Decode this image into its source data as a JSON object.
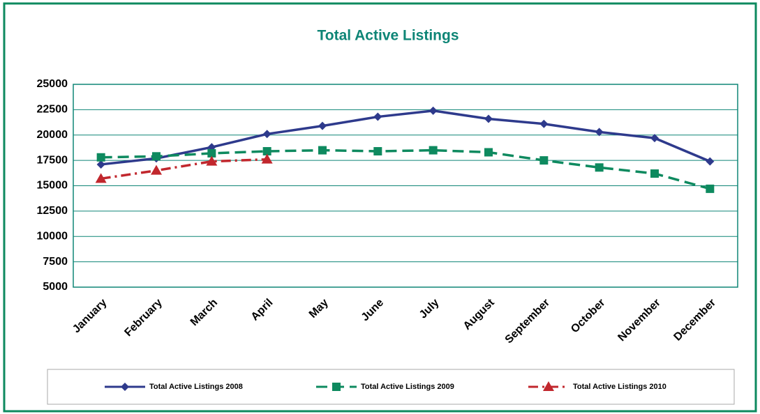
{
  "chart_data": {
    "type": "line",
    "title": "Total  Active Listings",
    "categories": [
      "January",
      "February",
      "March",
      "April",
      "May",
      "June",
      "July",
      "August",
      "September",
      "October",
      "November",
      "December"
    ],
    "series": [
      {
        "name": "Total Active Listings 2008",
        "color": "#2e3a8c",
        "line_style": "solid",
        "marker": "diamond",
        "values": [
          17100,
          17700,
          18800,
          20100,
          20900,
          21800,
          22400,
          21600,
          21100,
          20300,
          19700,
          17400
        ]
      },
      {
        "name": "Total Active Listings 2009",
        "color": "#0e8a5f",
        "line_style": "dashed",
        "marker": "square",
        "values": [
          17800,
          17900,
          18200,
          18400,
          18500,
          18400,
          18500,
          18300,
          17500,
          16800,
          16200,
          14700
        ]
      },
      {
        "name": "Total Active Listings 2010",
        "color": "#c1272d",
        "line_style": "dashdot",
        "marker": "triangle",
        "values": [
          15700,
          16500,
          17400,
          17600,
          null,
          null,
          null,
          null,
          null,
          null,
          null,
          null
        ]
      }
    ],
    "ylim": [
      5000,
      25000
    ],
    "yticks": [
      5000,
      7500,
      10000,
      12500,
      15000,
      17500,
      20000,
      22500,
      25000
    ],
    "grid": true,
    "legend": "bottom"
  }
}
